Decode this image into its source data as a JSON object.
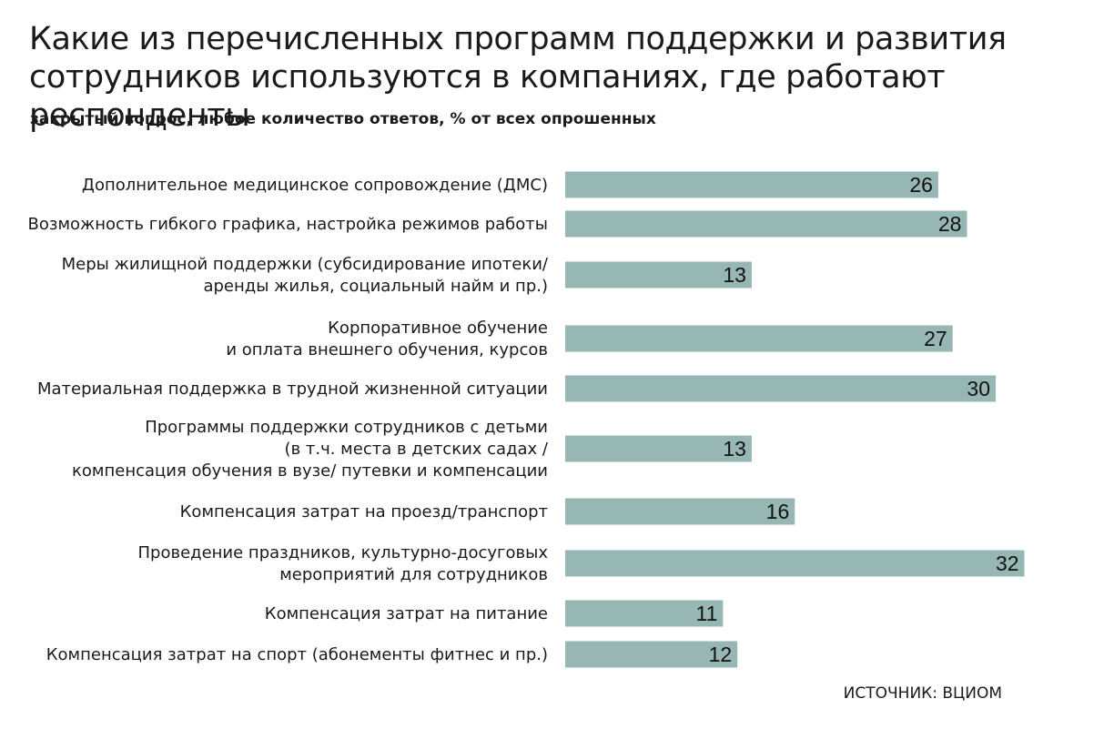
{
  "chart_data": {
    "type": "bar",
    "orientation": "horizontal",
    "title": "Какие из перечисленных программ поддержки и развития сотрудников используются в компаниях, где работают респонденты",
    "subtitle": "закрытый вопрос, любое количество ответов, % от всех опрошенных",
    "source": "ИСТОЧНИК: ВЦИОМ",
    "bar_color": "#97b7b5",
    "categories": [
      [
        "Дополнительное медицинское сопровождение (ДМС)"
      ],
      [
        "Возможность гибкого графика, настройка режимов работы"
      ],
      [
        "Меры жилищной поддержки (субсидирование ипотеки/",
        "аренды жилья, социальный найм и пр.)"
      ],
      [
        "Корпоративное обучение",
        "и оплата внешнего обучения, курсов"
      ],
      [
        "Материальная поддержка в трудной жизненной ситуации"
      ],
      [
        "Программы поддержки сотрудников с детьми",
        "(в т.ч. места в детских садах /",
        "компенсация обучения в вузе/ путевки и компенсации"
      ],
      [
        "Компенсация затрат на проезд/транспорт"
      ],
      [
        "Проведение праздников, культурно-досуговых",
        "мероприятий для сотрудников"
      ],
      [
        "Компенсация затрат на питание"
      ],
      [
        "Компенсация затрат на спорт (абонементы фитнес и пр.)"
      ]
    ],
    "values": [
      26,
      28,
      13,
      27,
      30,
      13,
      16,
      32,
      11,
      12
    ],
    "data_labels": [
      "26",
      "28",
      "13",
      "27",
      "30",
      "13",
      "16",
      "32",
      "11",
      "12"
    ],
    "xlim": [
      0,
      32
    ],
    "grid": false,
    "legend": "none"
  }
}
